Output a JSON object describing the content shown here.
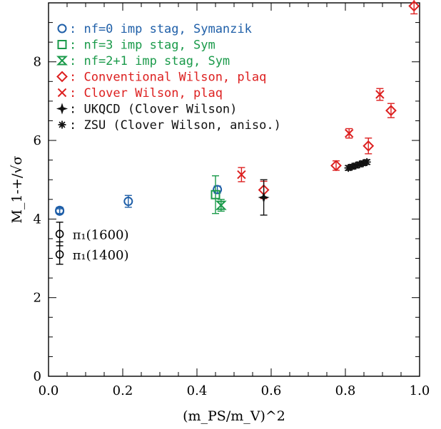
{
  "chart_data": {
    "type": "scatter",
    "title": "",
    "xlabel": "(m_PS/m_V)^2",
    "ylabel": "M_1-+/√σ",
    "xlim": [
      0.0,
      1.0
    ],
    "ylim": [
      0,
      9.5
    ],
    "xticks": [
      0.0,
      0.2,
      0.4,
      0.6,
      0.8,
      1.0
    ],
    "xtick_labels": [
      "0.0",
      "0.2",
      "0.4",
      "0.6",
      "0.8",
      "1.0"
    ],
    "yticks": [
      0,
      2,
      4,
      6,
      8
    ],
    "ytick_labels": [
      "0",
      "2",
      "4",
      "6",
      "8"
    ],
    "grid": false,
    "legend_position": "top-left",
    "series": [
      {
        "name": "nf=0 imp stag, Symanzik",
        "marker": "circle",
        "color": "#1f5fa8",
        "points": [
          {
            "x": 0.03,
            "y": 4.22,
            "err": 0.08
          },
          {
            "x": 0.03,
            "y": 4.2,
            "err": 0.06
          },
          {
            "x": 0.215,
            "y": 4.45,
            "err": 0.15
          },
          {
            "x": 0.455,
            "y": 4.75,
            "err": 0.09
          }
        ]
      },
      {
        "name": "nf=3 imp stag, Sym",
        "marker": "square",
        "color": "#1a9a4a",
        "points": [
          {
            "x": 0.45,
            "y": 4.62,
            "err": 0.48
          }
        ]
      },
      {
        "name": "nf=2+1 imp stag, Sym",
        "marker": "hourglass",
        "color": "#1a9a4a",
        "points": [
          {
            "x": 0.465,
            "y": 4.35,
            "err": 0.15
          }
        ]
      },
      {
        "name": "Conventional Wilson, plaq",
        "marker": "diamond",
        "color": "#dd2020",
        "points": [
          {
            "x": 0.58,
            "y": 4.74,
            "err": 0.22
          },
          {
            "x": 0.775,
            "y": 5.36,
            "err": 0.12
          },
          {
            "x": 0.862,
            "y": 5.86,
            "err": 0.2
          },
          {
            "x": 0.923,
            "y": 6.76,
            "err": 0.18
          },
          {
            "x": 0.985,
            "y": 9.42,
            "err": 0.2
          }
        ]
      },
      {
        "name": "Clover Wilson, plaq",
        "marker": "cross",
        "color": "#dd2020",
        "points": [
          {
            "x": 0.52,
            "y": 5.13,
            "err": 0.18
          },
          {
            "x": 0.81,
            "y": 6.18,
            "err": 0.12
          },
          {
            "x": 0.893,
            "y": 7.17,
            "err": 0.15
          }
        ]
      },
      {
        "name": "UKQCD (Clover Wilson)",
        "marker": "star4",
        "color": "#111111",
        "points": [
          {
            "x": 0.58,
            "y": 4.55,
            "err": 0.45
          }
        ]
      },
      {
        "name": "ZSU (Clover Wilson, aniso.)",
        "marker": "asterisk",
        "color": "#111111",
        "points": [
          {
            "x": 0.808,
            "y": 5.3,
            "err": 0.06
          },
          {
            "x": 0.818,
            "y": 5.33,
            "err": 0.06
          },
          {
            "x": 0.828,
            "y": 5.36,
            "err": 0.06
          },
          {
            "x": 0.838,
            "y": 5.39,
            "err": 0.06
          },
          {
            "x": 0.848,
            "y": 5.42,
            "err": 0.06
          },
          {
            "x": 0.858,
            "y": 5.45,
            "err": 0.06
          }
        ]
      }
    ],
    "reference_points": [
      {
        "label": "π₁(1600)",
        "x": 0.03,
        "y": 3.62,
        "err_low": 0.3,
        "err_high": 0.3
      },
      {
        "label": "π₁(1400)",
        "x": 0.03,
        "y": 3.1,
        "err_low": 0.25,
        "err_high": 0.32
      }
    ]
  }
}
